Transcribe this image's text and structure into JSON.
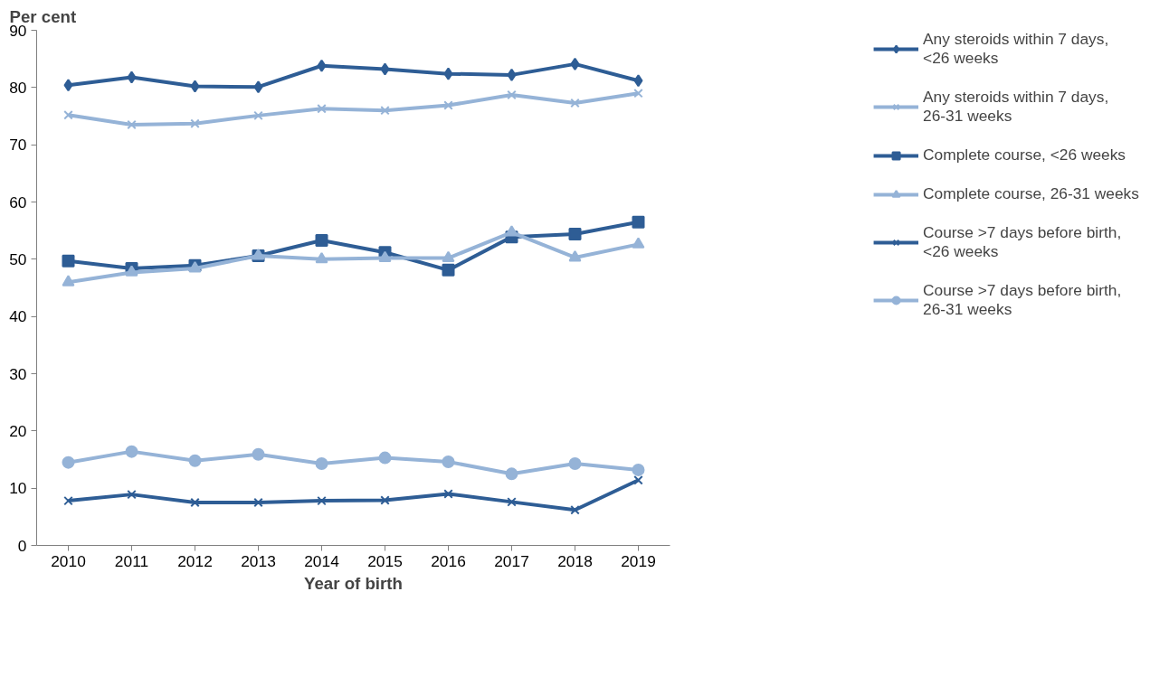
{
  "chart_data": {
    "type": "line",
    "ylabel": "Per cent",
    "xlabel": "Year of birth",
    "categories": [
      "2010",
      "2011",
      "2012",
      "2013",
      "2014",
      "2015",
      "2016",
      "2017",
      "2018",
      "2019"
    ],
    "ylim": [
      0,
      90
    ],
    "yticks": [
      0,
      10,
      20,
      30,
      40,
      50,
      60,
      70,
      80,
      90
    ],
    "grid": false,
    "legend": "right",
    "series": [
      {
        "name": "Any steroids within 7 days, <26 weeks",
        "color": "#2e5d95",
        "marker": "diamond",
        "values": [
          80.4,
          81.8,
          80.2,
          80.1,
          83.8,
          83.2,
          82.4,
          82.2,
          84.1,
          81.2
        ]
      },
      {
        "name": "Any steroids within 7 days, 26-31 weeks",
        "color": "#95b3d7",
        "marker": "cross",
        "values": [
          75.2,
          73.5,
          73.7,
          75.1,
          76.3,
          76.0,
          76.9,
          78.7,
          77.3,
          79.0
        ]
      },
      {
        "name": "Complete course, <26 weeks",
        "color": "#2e5d95",
        "marker": "square",
        "values": [
          49.7,
          48.4,
          48.9,
          50.6,
          53.3,
          51.2,
          48.1,
          53.9,
          54.4,
          56.5
        ]
      },
      {
        "name": "Complete course, 26-31 weeks",
        "color": "#95b3d7",
        "marker": "triangle",
        "values": [
          46.0,
          47.7,
          48.4,
          50.6,
          50.0,
          50.2,
          50.2,
          54.7,
          50.3,
          52.6
        ]
      },
      {
        "name": "Course >7 days before birth, <26 weeks",
        "color": "#2e5d95",
        "marker": "cross",
        "values": [
          7.8,
          8.9,
          7.5,
          7.5,
          7.8,
          7.9,
          9.0,
          7.6,
          6.2,
          11.4
        ]
      },
      {
        "name": "Course >7 days before birth, 26-31 weeks",
        "color": "#95b3d7",
        "marker": "circle",
        "values": [
          14.5,
          16.4,
          14.8,
          15.9,
          14.3,
          15.3,
          14.6,
          12.5,
          14.3,
          13.2
        ]
      }
    ]
  }
}
